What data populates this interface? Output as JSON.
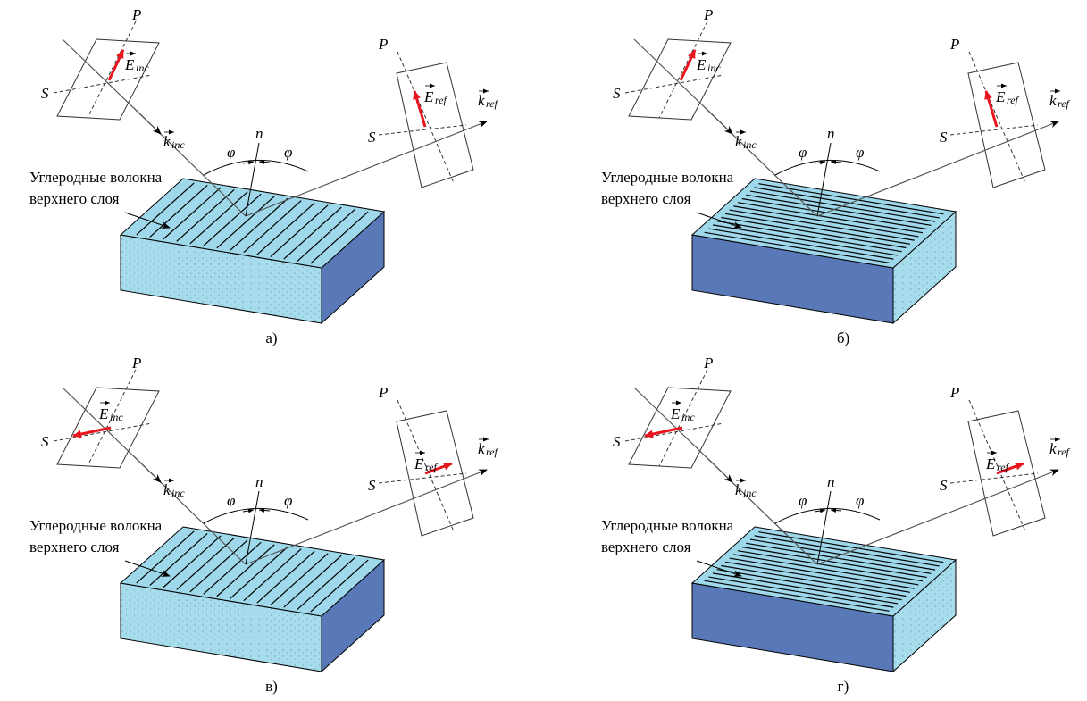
{
  "panels": [
    {
      "caption": "а)",
      "material_line1": "Углеродные волокна",
      "material_line2": "верхнего слоя",
      "p_inc": "P",
      "s_inc": "S",
      "e_inc": "E",
      "e_inc_sub": "inc",
      "k_inc": "k",
      "k_inc_sub": "inc",
      "normal": "n",
      "angle_inc": "φ",
      "angle_ref": "φ",
      "p_ref": "P",
      "s_ref": "S",
      "e_ref": "E",
      "e_ref_sub": "ref",
      "k_ref": "k",
      "k_ref_sub": "ref"
    },
    {
      "caption": "б)",
      "material_line1": "Углеродные волокна",
      "material_line2": "верхнего слоя",
      "p_inc": "P",
      "s_inc": "S",
      "e_inc": "E",
      "e_inc_sub": "inc",
      "k_inc": "k",
      "k_inc_sub": "inc",
      "normal": "n",
      "angle_inc": "φ",
      "angle_ref": "φ",
      "p_ref": "P",
      "s_ref": "S",
      "e_ref": "E",
      "e_ref_sub": "ref",
      "k_ref": "k",
      "k_ref_sub": "ref"
    },
    {
      "caption": "в)",
      "material_line1": "Углеродные волокна",
      "material_line2": "верхнего слоя",
      "p_inc": "P",
      "s_inc": "S",
      "e_inc": "E",
      "e_inc_sub": "inc",
      "k_inc": "k",
      "k_inc_sub": "inc",
      "normal": "n",
      "angle_inc": "φ",
      "angle_ref": "φ",
      "p_ref": "P",
      "s_ref": "S",
      "e_ref": "E",
      "e_ref_sub": "ref",
      "k_ref": "k",
      "k_ref_sub": "ref"
    },
    {
      "caption": "г)",
      "material_line1": "Углеродные волокна",
      "material_line2": "верхнего слоя",
      "p_inc": "P",
      "s_inc": "S",
      "e_inc": "E",
      "e_inc_sub": "inc",
      "k_inc": "k",
      "k_inc_sub": "inc",
      "normal": "n",
      "angle_inc": "φ",
      "angle_ref": "φ",
      "p_ref": "P",
      "s_ref": "S",
      "e_ref": "E",
      "e_ref_sub": "ref",
      "k_ref": "k",
      "k_ref_sub": "ref"
    }
  ]
}
